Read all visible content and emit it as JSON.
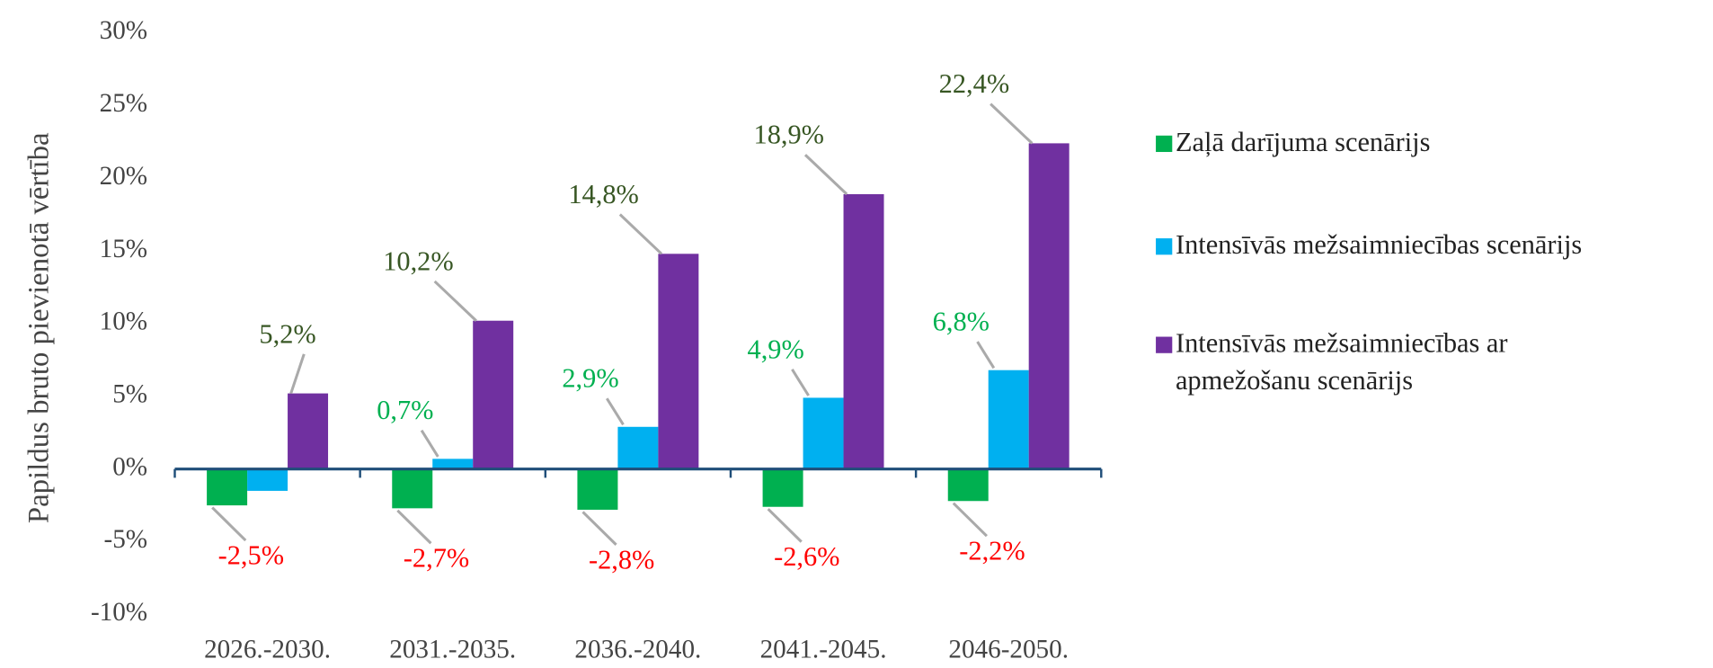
{
  "chart_data": {
    "type": "bar",
    "y_label": "Papildus bruto pievienotā vērtība",
    "categories": [
      "2026.-2030.",
      "2031.-2035.",
      "2036.-2040.",
      "2041.-2045.",
      "2046-2050."
    ],
    "series": [
      {
        "name": "Zaļā darījuma scenārijs",
        "color": "#00b050",
        "values": [
          -2.5,
          -2.7,
          -2.8,
          -2.6,
          -2.2
        ],
        "value_labels": [
          "-2,5%",
          "-2,7%",
          "-2,8%",
          "-2,6%",
          "-2,2%"
        ]
      },
      {
        "name": "Intensīvās mežsaimniecības scenārijs",
        "color": "#00b0f0",
        "values": [
          -1.5,
          0.7,
          2.9,
          4.9,
          6.8
        ],
        "value_labels": [
          null,
          "0,7%",
          "2,9%",
          "4,9%",
          "6,8%"
        ]
      },
      {
        "name": "Intensīvās mežsaimniecības ar apmežošanu scenārijs",
        "color": "#7030a0",
        "values": [
          5.2,
          10.2,
          14.8,
          18.9,
          22.4
        ],
        "value_labels": [
          "5,2%",
          "10,2%",
          "14,8%",
          "18,9%",
          "22,4%"
        ]
      }
    ],
    "ylim": [
      -10,
      30
    ],
    "yticks": [
      {
        "value": -10,
        "label": "-10%"
      },
      {
        "value": -5,
        "label": "-5%"
      },
      {
        "value": 0,
        "label": "0%"
      },
      {
        "value": 5,
        "label": "5%"
      },
      {
        "value": 10,
        "label": "10%"
      },
      {
        "value": 15,
        "label": "15%"
      },
      {
        "value": 20,
        "label": "20%"
      },
      {
        "value": 25,
        "label": "25%"
      },
      {
        "value": 30,
        "label": "30%"
      }
    ],
    "legend": "right"
  }
}
